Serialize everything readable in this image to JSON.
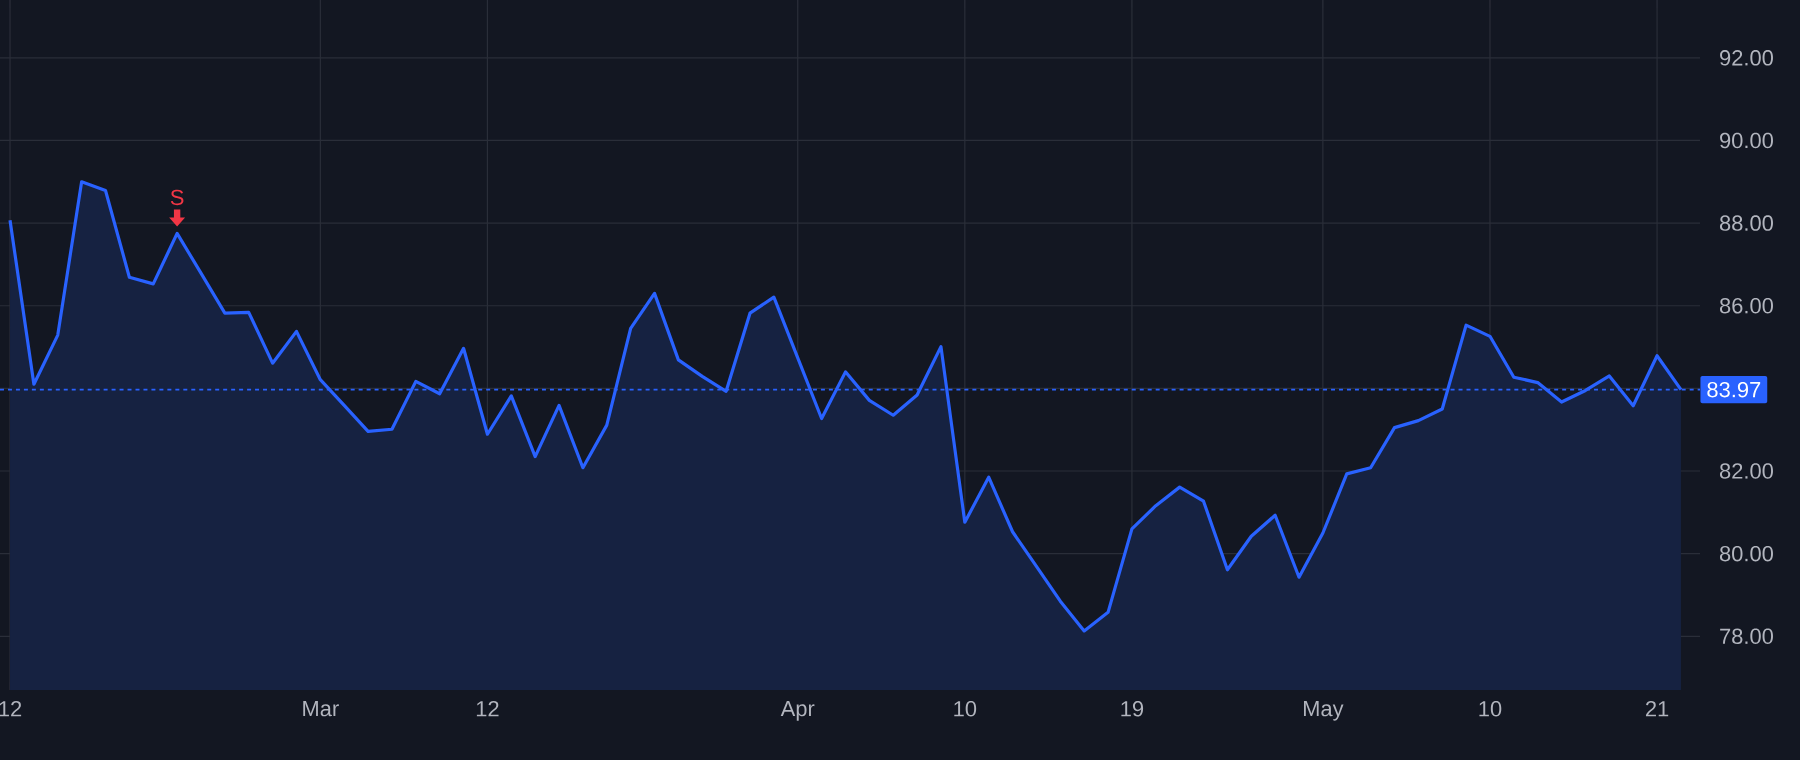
{
  "chart_data": {
    "type": "area",
    "color": "#2962ff",
    "categories": [
      "12",
      null,
      null,
      null,
      null,
      null,
      null,
      null,
      null,
      null,
      null,
      null,
      null,
      "Mar",
      null,
      null,
      null,
      null,
      null,
      null,
      "12",
      null,
      null,
      null,
      null,
      null,
      null,
      null,
      null,
      null,
      null,
      null,
      null,
      "Apr",
      null,
      null,
      null,
      null,
      null,
      null,
      "10",
      null,
      null,
      null,
      null,
      null,
      null,
      "19",
      null,
      null,
      null,
      null,
      null,
      null,
      null,
      "May",
      null,
      null,
      null,
      null,
      null,
      null,
      "10",
      null,
      null,
      null,
      null,
      null,
      null,
      "21",
      null
    ],
    "values": [
      88.07,
      84.1,
      85.29,
      89.0,
      88.79,
      86.69,
      86.53,
      87.75,
      86.79,
      85.82,
      85.84,
      84.61,
      85.38,
      84.21,
      83.59,
      82.96,
      83.01,
      84.17,
      83.87,
      84.97,
      82.89,
      83.82,
      82.35,
      83.59,
      82.08,
      83.11,
      85.45,
      86.3,
      84.69,
      84.29,
      83.93,
      85.82,
      86.21,
      84.74,
      83.27,
      84.4,
      83.71,
      83.35,
      83.84,
      85.01,
      80.76,
      81.85,
      80.53,
      79.69,
      78.85,
      78.13,
      78.58,
      80.6,
      81.16,
      81.61,
      81.27,
      79.61,
      80.42,
      80.93,
      79.43,
      80.5,
      81.93,
      82.08,
      83.05,
      83.22,
      83.5,
      85.53,
      85.26,
      84.27,
      84.14,
      83.67,
      83.95,
      84.3,
      83.58,
      84.79,
      83.97
    ],
    "ylim": [
      76.7,
      93.4
    ],
    "yticks": [
      {
        "value": 78,
        "label": "78.00"
      },
      {
        "value": 80,
        "label": "80.00"
      },
      {
        "value": 82,
        "label": "82.00"
      },
      {
        "value": 84,
        "label": null
      },
      {
        "value": 86,
        "label": "86.00"
      },
      {
        "value": 88,
        "label": "88.00"
      },
      {
        "value": 90,
        "label": "90.00"
      },
      {
        "value": 92,
        "label": "92.00"
      }
    ],
    "grid": true,
    "ref_lines": [
      {
        "axis": "y",
        "value": 83.97,
        "label": "83.97",
        "color": "#2962ff",
        "line_style": "dashed"
      }
    ],
    "annotations": [
      {
        "text": "S",
        "y": 87.75
      }
    ]
  }
}
